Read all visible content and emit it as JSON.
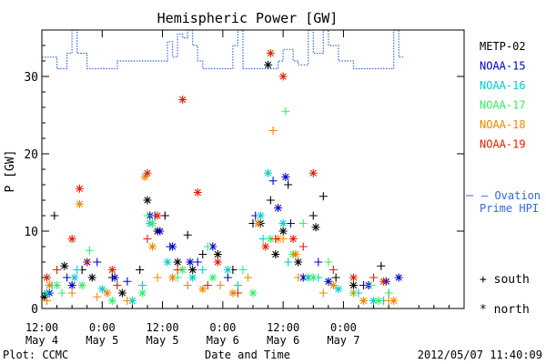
{
  "chart_data": {
    "type": "scatter",
    "title": "Hemispheric Power [GW]",
    "ylabel": "P [GW]",
    "xlabel": "Date and Time",
    "ylim": [
      0,
      36
    ],
    "yticks": [
      0,
      10,
      20,
      30
    ],
    "xlim": [
      "2012-05-04 12:00",
      "2012-05-07 24:00"
    ],
    "xticks": [
      {
        "t": "2012-05-04 12:00",
        "time": "12:00",
        "date": "May 4"
      },
      {
        "t": "2012-05-05 00:00",
        "time": "0:00",
        "date": "May 5"
      },
      {
        "t": "2012-05-05 12:00",
        "time": "12:00",
        "date": "May 5"
      },
      {
        "t": "2012-05-06 00:00",
        "time": "0:00",
        "date": "May 6"
      },
      {
        "t": "2012-05-06 12:00",
        "time": "12:00",
        "date": "May 6"
      },
      {
        "t": "2012-05-07 00:00",
        "time": "0:00",
        "date": "May 7"
      }
    ],
    "legend_placement": "right",
    "series": [
      {
        "name": "METP-02",
        "color": "#000000",
        "south": [
          [
            "2012-05-04 14:30",
            12
          ],
          [
            "2012-05-04 20:00",
            5
          ],
          [
            "2012-05-05 02:00",
            4
          ],
          [
            "2012-05-05 07:30",
            5
          ],
          [
            "2012-05-05 12:30",
            12
          ],
          [
            "2012-05-05 17:00",
            9.5
          ],
          [
            "2012-05-05 20:00",
            7
          ],
          [
            "2012-05-06 02:00",
            5
          ],
          [
            "2012-05-06 06:00",
            11
          ],
          [
            "2012-05-06 09:30",
            14
          ],
          [
            "2012-05-06 13:00",
            16
          ],
          [
            "2012-05-06 18:00",
            12
          ],
          [
            "2012-05-06 20:00",
            14.5
          ],
          [
            "2012-05-06 22:30",
            4
          ],
          [
            "2012-05-07 05:00",
            3
          ],
          [
            "2012-05-07 07:30",
            5.5
          ]
        ],
        "north": [
          [
            "2012-05-04 12:30",
            1.5
          ],
          [
            "2012-05-04 16:30",
            5.5
          ],
          [
            "2012-05-04 22:00",
            4
          ],
          [
            "2012-05-05 04:00",
            2
          ],
          [
            "2012-05-05 09:00",
            14
          ],
          [
            "2012-05-05 11:00",
            10
          ],
          [
            "2012-05-05 15:00",
            6
          ],
          [
            "2012-05-05 18:00",
            5
          ],
          [
            "2012-05-05 23:00",
            7
          ],
          [
            "2012-05-06 07:30",
            11
          ],
          [
            "2012-05-06 09:00",
            31.5
          ],
          [
            "2012-05-06 10:30",
            7
          ],
          [
            "2012-05-06 12:00",
            10
          ],
          [
            "2012-05-06 15:00",
            6
          ],
          [
            "2012-05-06 18:30",
            10.5
          ],
          [
            "2012-05-07 02:00",
            3
          ]
        ]
      },
      {
        "name": "NOAA-15",
        "color": "#0000cc",
        "south": [
          [
            "2012-05-04 17:00",
            4
          ],
          [
            "2012-05-04 23:00",
            6
          ],
          [
            "2012-05-05 05:00",
            3.5
          ],
          [
            "2012-05-05 10:30",
            12
          ],
          [
            "2012-05-05 13:30",
            8
          ],
          [
            "2012-05-05 19:00",
            6
          ],
          [
            "2012-05-06 01:00",
            4
          ],
          [
            "2012-05-06 06:30",
            12
          ],
          [
            "2012-05-06 10:00",
            16.5
          ],
          [
            "2012-05-06 13:30",
            11
          ],
          [
            "2012-05-06 19:00",
            6
          ],
          [
            "2012-05-07 04:00",
            3
          ],
          [
            "2012-05-07 09:00",
            2
          ]
        ],
        "north": [
          [
            "2012-05-04 13:30",
            2
          ],
          [
            "2012-05-04 18:00",
            3
          ],
          [
            "2012-05-04 21:00",
            6
          ],
          [
            "2012-05-05 02:30",
            4
          ],
          [
            "2012-05-05 09:30",
            12
          ],
          [
            "2012-05-05 11:30",
            10
          ],
          [
            "2012-05-05 14:00",
            8
          ],
          [
            "2012-05-05 17:30",
            6
          ],
          [
            "2012-05-05 22:00",
            8
          ],
          [
            "2012-05-06 07:00",
            11
          ],
          [
            "2012-05-06 11:00",
            13
          ],
          [
            "2012-05-06 12:30",
            17
          ],
          [
            "2012-05-06 16:00",
            4
          ],
          [
            "2012-05-06 21:00",
            3.5
          ],
          [
            "2012-05-07 05:00",
            3
          ],
          [
            "2012-05-07 08:30",
            3.5
          ],
          [
            "2012-05-07 11:00",
            4
          ]
        ]
      },
      {
        "name": "NOAA-16",
        "color": "#00cccc",
        "south": [
          [
            "2012-05-04 14:00",
            3
          ],
          [
            "2012-05-04 19:00",
            5
          ],
          [
            "2012-05-05 01:00",
            2
          ],
          [
            "2012-05-05 08:00",
            3
          ],
          [
            "2012-05-05 14:00",
            4
          ],
          [
            "2012-05-05 20:00",
            5
          ],
          [
            "2012-05-06 03:00",
            3
          ],
          [
            "2012-05-06 08:00",
            9
          ],
          [
            "2012-05-06 13:00",
            6
          ],
          [
            "2012-05-06 19:00",
            4
          ],
          [
            "2012-05-07 03:00",
            2
          ],
          [
            "2012-05-07 08:00",
            1
          ]
        ],
        "north": [
          [
            "2012-05-04 13:00",
            2
          ],
          [
            "2012-05-04 18:30",
            4
          ],
          [
            "2012-05-05 00:00",
            2.5
          ],
          [
            "2012-05-05 06:00",
            1
          ],
          [
            "2012-05-05 09:30",
            11
          ],
          [
            "2012-05-05 13:00",
            6
          ],
          [
            "2012-05-05 18:00",
            4
          ],
          [
            "2012-05-06 01:00",
            5
          ],
          [
            "2012-05-06 07:30",
            12
          ],
          [
            "2012-05-06 09:00",
            17.5
          ],
          [
            "2012-05-06 12:00",
            11
          ],
          [
            "2012-05-06 17:00",
            4
          ],
          [
            "2012-05-06 23:00",
            2.5
          ],
          [
            "2012-05-07 06:00",
            1
          ]
        ]
      },
      {
        "name": "NOAA-17",
        "color": "#33ee66",
        "south": [
          [
            "2012-05-04 16:00",
            2
          ],
          [
            "2012-05-04 21:30",
            7.5
          ],
          [
            "2012-05-05 03:00",
            3
          ],
          [
            "2012-05-05 09:00",
            12
          ],
          [
            "2012-05-05 15:00",
            4
          ],
          [
            "2012-05-05 21:00",
            8
          ],
          [
            "2012-05-06 04:00",
            5
          ],
          [
            "2012-05-06 10:00",
            23
          ],
          [
            "2012-05-06 12:30",
            25.5
          ],
          [
            "2012-05-06 16:00",
            11
          ],
          [
            "2012-05-06 21:00",
            6
          ],
          [
            "2012-05-07 05:30",
            3
          ],
          [
            "2012-05-07 09:00",
            2
          ]
        ],
        "north": [
          [
            "2012-05-04 15:00",
            3
          ],
          [
            "2012-05-04 20:00",
            3
          ],
          [
            "2012-05-05 02:00",
            1
          ],
          [
            "2012-05-05 08:00",
            2
          ],
          [
            "2012-05-05 10:00",
            11
          ],
          [
            "2012-05-05 16:00",
            5
          ],
          [
            "2012-05-05 22:00",
            4
          ],
          [
            "2012-05-06 06:00",
            2
          ],
          [
            "2012-05-06 09:30",
            9
          ],
          [
            "2012-05-06 14:00",
            7
          ],
          [
            "2012-05-06 18:00",
            4
          ],
          [
            "2012-05-07 02:00",
            2
          ],
          [
            "2012-05-07 07:00",
            1
          ]
        ]
      },
      {
        "name": "NOAA-18",
        "color": "#ee8800",
        "south": [
          [
            "2012-05-04 13:00",
            1
          ],
          [
            "2012-05-04 18:00",
            2
          ],
          [
            "2012-05-04 23:00",
            1.5
          ],
          [
            "2012-05-05 05:00",
            1
          ],
          [
            "2012-05-05 11:00",
            4
          ],
          [
            "2012-05-05 17:00",
            3
          ],
          [
            "2012-05-05 23:30",
            3
          ],
          [
            "2012-05-06 05:00",
            4
          ],
          [
            "2012-05-06 10:00",
            23
          ],
          [
            "2012-05-06 12:00",
            9
          ],
          [
            "2012-05-06 15:00",
            4
          ],
          [
            "2012-05-06 20:00",
            2
          ],
          [
            "2012-05-07 02:00",
            2
          ],
          [
            "2012-05-07 09:00",
            1
          ]
        ],
        "north": [
          [
            "2012-05-04 13:30",
            3
          ],
          [
            "2012-05-04 19:30",
            13.5
          ],
          [
            "2012-05-05 01:00",
            2
          ],
          [
            "2012-05-05 08:30",
            17
          ],
          [
            "2012-05-05 10:00",
            8
          ],
          [
            "2012-05-05 14:00",
            4
          ],
          [
            "2012-05-05 20:00",
            2.5
          ],
          [
            "2012-05-06 02:00",
            2
          ],
          [
            "2012-05-06 07:00",
            11
          ],
          [
            "2012-05-06 11:00",
            9
          ],
          [
            "2012-05-06 14:30",
            7
          ],
          [
            "2012-05-06 22:00",
            3
          ],
          [
            "2012-05-07 04:00",
            1
          ],
          [
            "2012-05-07 10:00",
            1
          ]
        ]
      },
      {
        "name": "NOAA-19",
        "color": "#dd2200",
        "south": [
          [
            "2012-05-04 15:00",
            5
          ],
          [
            "2012-05-04 21:00",
            6
          ],
          [
            "2012-05-05 03:00",
            3
          ],
          [
            "2012-05-05 09:00",
            9
          ],
          [
            "2012-05-05 15:00",
            5
          ],
          [
            "2012-05-05 21:00",
            3
          ],
          [
            "2012-05-06 03:00",
            2
          ],
          [
            "2012-05-06 10:30",
            9
          ],
          [
            "2012-05-06 16:00",
            8
          ],
          [
            "2012-05-06 22:00",
            5
          ],
          [
            "2012-05-07 06:00",
            4
          ]
        ],
        "north": [
          [
            "2012-05-04 13:00",
            4
          ],
          [
            "2012-05-04 18:00",
            9
          ],
          [
            "2012-05-04 19:30",
            15.5
          ],
          [
            "2012-05-05 02:00",
            5
          ],
          [
            "2012-05-05 09:00",
            17.5
          ],
          [
            "2012-05-05 11:00",
            12
          ],
          [
            "2012-05-05 16:00",
            27
          ],
          [
            "2012-05-05 19:00",
            15
          ],
          [
            "2012-05-05 23:00",
            6
          ],
          [
            "2012-05-06 08:30",
            8
          ],
          [
            "2012-05-06 09:30",
            33
          ],
          [
            "2012-05-06 12:00",
            30
          ],
          [
            "2012-05-06 14:00",
            9
          ],
          [
            "2012-05-06 18:00",
            17.5
          ],
          [
            "2012-05-07 02:00",
            4
          ],
          [
            "2012-05-07 08:00",
            3.5
          ]
        ]
      }
    ],
    "reference_line": {
      "name": "Ovation Prime HPI",
      "legend_text": "— Ovation\nPrime HPI",
      "color": "#3366dd",
      "style": "dotted-step",
      "points": [
        [
          "2012-05-04 12:00",
          32.5
        ],
        [
          "2012-05-04 15:00",
          32.5
        ],
        [
          "2012-05-04 15:00",
          31
        ],
        [
          "2012-05-04 17:00",
          31
        ],
        [
          "2012-05-04 17:00",
          33
        ],
        [
          "2012-05-04 18:00",
          33
        ],
        [
          "2012-05-04 18:00",
          36.5
        ],
        [
          "2012-05-04 19:00",
          36.5
        ],
        [
          "2012-05-04 19:00",
          33
        ],
        [
          "2012-05-04 21:00",
          33
        ],
        [
          "2012-05-04 21:00",
          31
        ],
        [
          "2012-05-05 03:00",
          31
        ],
        [
          "2012-05-05 03:00",
          32
        ],
        [
          "2012-05-05 13:00",
          32
        ],
        [
          "2012-05-05 13:00",
          34.5
        ],
        [
          "2012-05-05 14:00",
          34.5
        ],
        [
          "2012-05-05 14:00",
          32.5
        ],
        [
          "2012-05-05 15:00",
          32.5
        ],
        [
          "2012-05-05 15:00",
          35.5
        ],
        [
          "2012-05-05 16:00",
          35.5
        ],
        [
          "2012-05-05 16:00",
          35
        ],
        [
          "2012-05-05 17:00",
          35
        ],
        [
          "2012-05-05 17:00",
          36.5
        ],
        [
          "2012-05-05 18:00",
          36.5
        ],
        [
          "2012-05-05 18:00",
          34
        ],
        [
          "2012-05-05 19:00",
          34
        ],
        [
          "2012-05-05 19:00",
          32
        ],
        [
          "2012-05-05 20:00",
          32
        ],
        [
          "2012-05-05 20:00",
          31
        ],
        [
          "2012-05-06 02:00",
          31
        ],
        [
          "2012-05-06 02:00",
          34
        ],
        [
          "2012-05-06 03:00",
          34
        ],
        [
          "2012-05-06 03:00",
          36.5
        ],
        [
          "2012-05-06 04:00",
          36.5
        ],
        [
          "2012-05-06 04:00",
          31
        ],
        [
          "2012-05-06 11:00",
          31
        ],
        [
          "2012-05-06 11:00",
          32
        ],
        [
          "2012-05-06 12:00",
          32
        ],
        [
          "2012-05-06 12:00",
          33.5
        ],
        [
          "2012-05-06 14:00",
          33.5
        ],
        [
          "2012-05-06 14:00",
          32
        ],
        [
          "2012-05-06 15:00",
          32
        ],
        [
          "2012-05-06 15:00",
          31.5
        ],
        [
          "2012-05-06 17:00",
          31.5
        ],
        [
          "2012-05-06 17:00",
          36.5
        ],
        [
          "2012-05-06 18:00",
          36.5
        ],
        [
          "2012-05-06 18:00",
          33
        ],
        [
          "2012-05-06 20:00",
          33
        ],
        [
          "2012-05-06 20:00",
          36.5
        ],
        [
          "2012-05-06 21:00",
          36.5
        ],
        [
          "2012-05-06 21:00",
          34
        ],
        [
          "2012-05-06 23:00",
          34
        ],
        [
          "2012-05-06 23:00",
          32
        ],
        [
          "2012-05-07 02:00",
          32
        ],
        [
          "2012-05-07 02:00",
          31
        ],
        [
          "2012-05-07 10:00",
          31
        ],
        [
          "2012-05-07 10:00",
          36.5
        ],
        [
          "2012-05-07 11:00",
          36.5
        ],
        [
          "2012-05-07 11:00",
          32.5
        ],
        [
          "2012-05-07 12:00",
          32.5
        ]
      ]
    },
    "marker_legend": {
      "south": "+ south",
      "north": "* north"
    }
  },
  "footer": {
    "left": "Plot: CCMC",
    "right": "2012/05/07 11:40:09"
  }
}
